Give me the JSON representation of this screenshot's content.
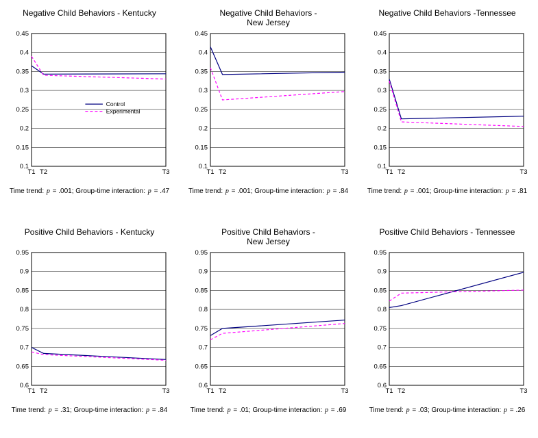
{
  "p_symbol": "p",
  "colors": {
    "control": "#000080",
    "experimental": "#FF00FF"
  },
  "legend": {
    "items": [
      "Control",
      "Experimental"
    ]
  },
  "chart_data": [
    {
      "type": "line",
      "title": "Negative Child Behaviors - Kentucky",
      "ylim": [
        0.1,
        0.45
      ],
      "yticks": [
        0.1,
        0.15,
        0.2,
        0.25,
        0.3,
        0.35,
        0.4,
        0.45
      ],
      "ytick_labels": [
        "0.1",
        "0.15",
        "0.2",
        "0.25",
        "0.3",
        "0.35",
        "0.4",
        "0.45"
      ],
      "x_ticks": [
        "T1",
        "T2",
        "T3"
      ],
      "x_positions": [
        0,
        0.09,
        1
      ],
      "series": [
        {
          "name": "Control",
          "color": "#000080",
          "dashed": false,
          "values": [
            0.365,
            0.343,
            0.344
          ]
        },
        {
          "name": "Experimental",
          "color": "#FF00FF",
          "dashed": true,
          "values": [
            0.39,
            0.34,
            0.33
          ]
        }
      ],
      "show_legend": true,
      "legend_y": [
        0.264,
        0.245
      ],
      "caption": {
        "time_label": "Time trend:",
        "time_eq": "= .001;",
        "int_label": "Group-time interaction:",
        "int_eq": "= .47"
      }
    },
    {
      "type": "line",
      "title": "Negative Child Behaviors -\nNew Jersey",
      "ylim": [
        0.1,
        0.45
      ],
      "yticks": [
        0.1,
        0.15,
        0.2,
        0.25,
        0.3,
        0.35,
        0.4,
        0.45
      ],
      "ytick_labels": [
        "0.1",
        "0.15",
        "0.2",
        "0.25",
        "0.3",
        "0.35",
        "0.4",
        "0.45"
      ],
      "x_ticks": [
        "T1",
        "T2",
        "T3"
      ],
      "x_positions": [
        0,
        0.09,
        1
      ],
      "series": [
        {
          "name": "Control",
          "color": "#000080",
          "dashed": false,
          "values": [
            0.415,
            0.342,
            0.348
          ]
        },
        {
          "name": "Experimental",
          "color": "#FF00FF",
          "dashed": true,
          "values": [
            0.36,
            0.275,
            0.297
          ]
        }
      ],
      "show_legend": false,
      "legend_y": [],
      "caption": {
        "time_label": "Time trend:",
        "time_eq": "= .001;",
        "int_label": "Group-time interaction:",
        "int_eq": "= .84"
      }
    },
    {
      "type": "line",
      "title": "Negative Child Behaviors -Tennessee",
      "ylim": [
        0.1,
        0.45
      ],
      "yticks": [
        0.1,
        0.15,
        0.2,
        0.25,
        0.3,
        0.35,
        0.4,
        0.45
      ],
      "ytick_labels": [
        "0.1",
        "0.15",
        "0.2",
        "0.25",
        "0.3",
        "0.35",
        "0.4",
        "0.45"
      ],
      "x_ticks": [
        "T1",
        "T2",
        "T3"
      ],
      "x_positions": [
        0,
        0.09,
        1
      ],
      "series": [
        {
          "name": "Control",
          "color": "#000080",
          "dashed": false,
          "values": [
            0.33,
            0.225,
            0.232
          ]
        },
        {
          "name": "Experimental",
          "color": "#FF00FF",
          "dashed": true,
          "values": [
            0.325,
            0.217,
            0.205
          ]
        }
      ],
      "show_legend": false,
      "legend_y": [],
      "caption": {
        "time_label": "Time trend:",
        "time_eq": "= .001;",
        "int_label": "Group-time interaction:",
        "int_eq": "= .81"
      }
    },
    {
      "type": "line",
      "title": "Positive Child Behaviors - Kentucky",
      "ylim": [
        0.6,
        0.95
      ],
      "yticks": [
        0.6,
        0.65,
        0.7,
        0.75,
        0.8,
        0.85,
        0.9,
        0.95
      ],
      "ytick_labels": [
        "0.6",
        "0.65",
        "0.7",
        "0.75",
        "0.8",
        "0.85",
        "0.9",
        "0.95"
      ],
      "x_ticks": [
        "T1",
        "T2",
        "T3"
      ],
      "x_positions": [
        0,
        0.09,
        1
      ],
      "series": [
        {
          "name": "Control",
          "color": "#000080",
          "dashed": false,
          "values": [
            0.7,
            0.684,
            0.668
          ]
        },
        {
          "name": "Experimental",
          "color": "#FF00FF",
          "dashed": true,
          "values": [
            0.688,
            0.681,
            0.666
          ]
        }
      ],
      "show_legend": false,
      "legend_y": [],
      "caption": {
        "time_label": "Time trend:",
        "time_eq": "= .31;",
        "int_label": "Group-time interaction:",
        "int_eq": "= .84"
      }
    },
    {
      "type": "line",
      "title": "Positive Child Behaviors -\nNew Jersey",
      "ylim": [
        0.6,
        0.95
      ],
      "yticks": [
        0.6,
        0.65,
        0.7,
        0.75,
        0.8,
        0.85,
        0.9,
        0.95
      ],
      "ytick_labels": [
        "0.6",
        "0.65",
        "0.7",
        "0.75",
        "0.8",
        "0.85",
        "0.9",
        "0.95"
      ],
      "x_ticks": [
        "T1",
        "T2",
        "T3"
      ],
      "x_positions": [
        0,
        0.09,
        1
      ],
      "series": [
        {
          "name": "Control",
          "color": "#000080",
          "dashed": false,
          "values": [
            0.731,
            0.75,
            0.772
          ]
        },
        {
          "name": "Experimental",
          "color": "#FF00FF",
          "dashed": true,
          "values": [
            0.72,
            0.737,
            0.763
          ]
        }
      ],
      "show_legend": false,
      "legend_y": [],
      "caption": {
        "time_label": "Time trend:",
        "time_eq": "= .01;",
        "int_label": "Group-time interaction:",
        "int_eq": "= .69"
      }
    },
    {
      "type": "line",
      "title": "Positive Child Behaviors - Tennessee",
      "ylim": [
        0.6,
        0.95
      ],
      "yticks": [
        0.6,
        0.65,
        0.7,
        0.75,
        0.8,
        0.85,
        0.9,
        0.95
      ],
      "ytick_labels": [
        "0.6",
        "0.65",
        "0.7",
        "0.75",
        "0.8",
        "0.85",
        "0.9",
        "0.95"
      ],
      "x_ticks": [
        "T1",
        "T2",
        "T3"
      ],
      "x_positions": [
        0,
        0.09,
        1
      ],
      "series": [
        {
          "name": "Control",
          "color": "#000080",
          "dashed": false,
          "values": [
            0.805,
            0.81,
            0.898
          ]
        },
        {
          "name": "Experimental",
          "color": "#FF00FF",
          "dashed": true,
          "values": [
            0.822,
            0.843,
            0.851
          ]
        }
      ],
      "show_legend": false,
      "legend_y": [],
      "caption": {
        "time_label": "Time trend:",
        "time_eq": "= .03;",
        "int_label": "Group-time interaction:",
        "int_eq": "= .26"
      }
    }
  ]
}
